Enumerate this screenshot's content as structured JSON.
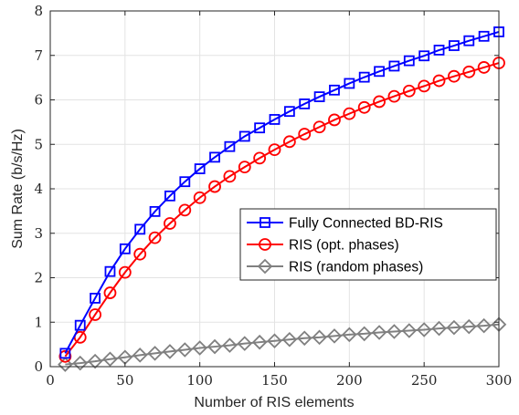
{
  "chart_data": {
    "type": "line",
    "xlabel": "Number of RIS elements",
    "ylabel": "Sum Rate (b/s/Hz)",
    "xlim": [
      0,
      300
    ],
    "ylim": [
      0,
      8
    ],
    "xticks": [
      "0",
      "50",
      "100",
      "150",
      "200",
      "250",
      "300"
    ],
    "yticks": [
      "0",
      "1",
      "2",
      "3",
      "4",
      "5",
      "6",
      "7",
      "8"
    ],
    "grid": true,
    "legend_position": "center-right",
    "x": [
      10,
      20,
      30,
      40,
      50,
      60,
      70,
      80,
      90,
      100,
      110,
      120,
      130,
      140,
      150,
      160,
      170,
      180,
      190,
      200,
      210,
      220,
      230,
      240,
      250,
      260,
      270,
      280,
      290,
      300
    ],
    "series": [
      {
        "name": "Fully Connected BD-RIS",
        "color": "#0000ff",
        "marker": "square",
        "values": [
          0.3,
          0.93,
          1.54,
          2.14,
          2.65,
          3.09,
          3.49,
          3.84,
          4.16,
          4.45,
          4.71,
          4.95,
          5.18,
          5.37,
          5.56,
          5.74,
          5.91,
          6.07,
          6.22,
          6.37,
          6.51,
          6.64,
          6.76,
          6.88,
          6.99,
          7.12,
          7.22,
          7.33,
          7.43,
          7.53
        ]
      },
      {
        "name": "RIS (opt. phases)",
        "color": "#ff0000",
        "marker": "circle",
        "values": [
          0.23,
          0.66,
          1.17,
          1.66,
          2.12,
          2.53,
          2.9,
          3.22,
          3.52,
          3.8,
          4.05,
          4.28,
          4.49,
          4.69,
          4.88,
          5.06,
          5.23,
          5.39,
          5.55,
          5.69,
          5.83,
          5.96,
          6.08,
          6.2,
          6.31,
          6.43,
          6.53,
          6.63,
          6.73,
          6.83
        ]
      },
      {
        "name": "RIS (random phases)",
        "color": "#808080",
        "marker": "diamond",
        "values": [
          0.05,
          0.08,
          0.12,
          0.17,
          0.21,
          0.26,
          0.3,
          0.34,
          0.38,
          0.42,
          0.45,
          0.48,
          0.52,
          0.55,
          0.58,
          0.61,
          0.64,
          0.66,
          0.69,
          0.72,
          0.74,
          0.77,
          0.79,
          0.81,
          0.83,
          0.86,
          0.88,
          0.9,
          0.92,
          0.95
        ]
      }
    ]
  }
}
